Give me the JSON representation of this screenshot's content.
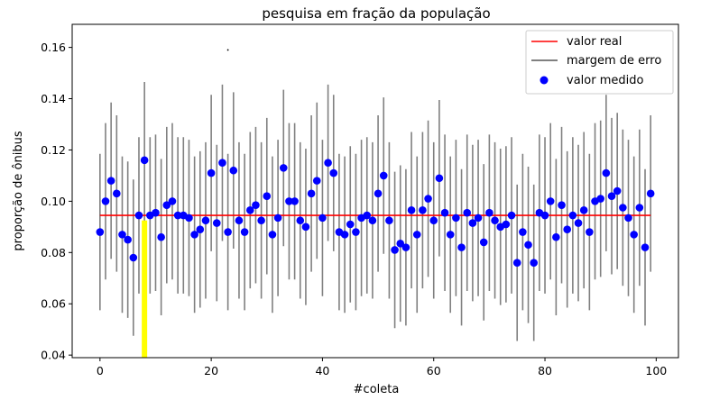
{
  "chart_data": {
    "type": "scatter",
    "title": "pesquisa em fração da população",
    "xlabel": "#coleta",
    "ylabel": "proporção de ônibus",
    "xlim": [
      -5,
      104
    ],
    "ylim": [
      0.039,
      0.169
    ],
    "x_ticks": [
      0,
      20,
      40,
      60,
      80,
      100
    ],
    "x_tick_labels": [
      "0",
      "20",
      "40",
      "60",
      "80",
      "100"
    ],
    "y_ticks": [
      0.04,
      0.06,
      0.08,
      0.1,
      0.12,
      0.14,
      0.16
    ],
    "y_tick_labels": [
      "0.04",
      "0.06",
      "0.08",
      "0.10",
      "0.12",
      "0.14",
      "0.16"
    ],
    "grid": false,
    "legend_position": "top-right",
    "legend": [
      {
        "label": "valor real",
        "kind": "line",
        "color": "#ff0000"
      },
      {
        "label": "margem de erro",
        "kind": "line",
        "color": "#808080"
      },
      {
        "label": "valor medido",
        "kind": "marker",
        "color": "#0000ff"
      }
    ],
    "true_value": {
      "name": "valor real",
      "y": 0.0945,
      "x_range": [
        0,
        99
      ],
      "color": "#ff0000"
    },
    "highlight": {
      "x": 8,
      "y_range": [
        0.039,
        0.0925
      ],
      "color": "#ffff00"
    },
    "stray_point": {
      "x": 23,
      "y": 0.159
    },
    "error_margin": 0.0305,
    "errorbar_color": "#808080",
    "marker_color": "#0000ff",
    "series": [
      {
        "name": "valor medido",
        "x": [
          0,
          1,
          2,
          3,
          4,
          5,
          6,
          7,
          8,
          9,
          10,
          11,
          12,
          13,
          14,
          15,
          16,
          17,
          18,
          19,
          20,
          21,
          22,
          23,
          24,
          25,
          26,
          27,
          28,
          29,
          30,
          31,
          32,
          33,
          34,
          35,
          36,
          37,
          38,
          39,
          40,
          41,
          42,
          43,
          44,
          45,
          46,
          47,
          48,
          49,
          50,
          51,
          52,
          53,
          54,
          55,
          56,
          57,
          58,
          59,
          60,
          61,
          62,
          63,
          64,
          65,
          66,
          67,
          68,
          69,
          70,
          71,
          72,
          73,
          74,
          75,
          76,
          77,
          78,
          79,
          80,
          81,
          82,
          83,
          84,
          85,
          86,
          87,
          88,
          89,
          90,
          91,
          92,
          93,
          94,
          95,
          96,
          97,
          98,
          99
        ],
        "y": [
          0.088,
          0.1,
          0.108,
          0.103,
          0.087,
          0.085,
          0.078,
          0.0945,
          0.116,
          0.0945,
          0.0955,
          0.086,
          0.0985,
          0.1,
          0.0945,
          0.0945,
          0.0935,
          0.087,
          0.089,
          0.0925,
          0.111,
          0.0915,
          0.115,
          0.088,
          0.112,
          0.0925,
          0.088,
          0.0965,
          0.0985,
          0.0925,
          0.102,
          0.087,
          0.0935,
          0.113,
          0.1,
          0.1,
          0.0925,
          0.09,
          0.103,
          0.108,
          0.0935,
          0.115,
          0.111,
          0.088,
          0.087,
          0.091,
          0.088,
          0.0935,
          0.0945,
          0.0925,
          0.103,
          0.11,
          0.0925,
          0.081,
          0.0835,
          0.082,
          0.0965,
          0.087,
          0.0965,
          0.101,
          0.0925,
          0.109,
          0.0955,
          0.087,
          0.0935,
          0.082,
          0.0955,
          0.0915,
          0.0935,
          0.084,
          0.0955,
          0.0925,
          0.09,
          0.091,
          0.0945,
          0.076,
          0.088,
          0.083,
          0.076,
          0.0955,
          0.0945,
          0.1,
          0.086,
          0.0985,
          0.089,
          0.0945,
          0.0915,
          0.0965,
          0.088,
          0.1,
          0.101,
          0.111,
          0.102,
          0.104,
          0.0975,
          0.0935,
          0.087,
          0.0975,
          0.082,
          0.103
        ]
      }
    ]
  }
}
